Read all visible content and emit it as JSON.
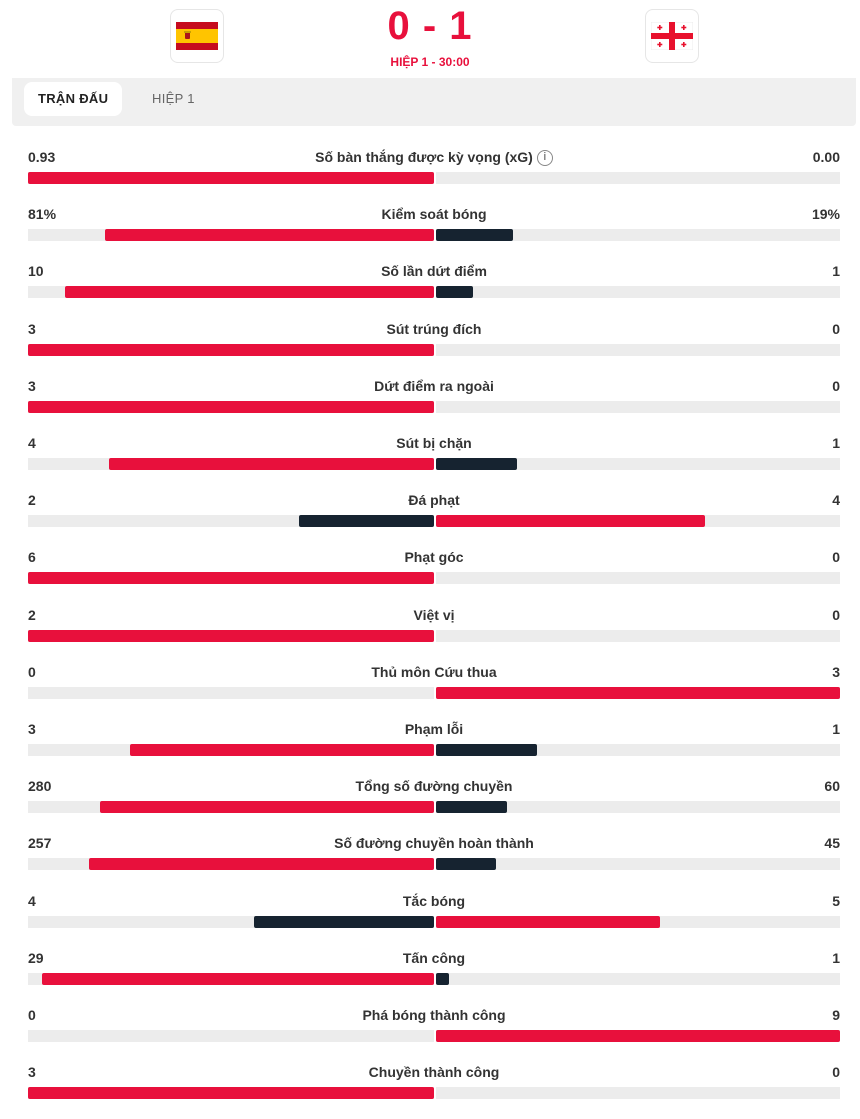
{
  "header": {
    "home_flag": "spain-flag",
    "away_flag": "georgia-flag",
    "score": "0 - 1",
    "status": "HIỆP 1 - 30:00"
  },
  "tabs": [
    {
      "label": "TRẬN ĐẤU",
      "active": true
    },
    {
      "label": "HIỆP 1",
      "active": false
    }
  ],
  "colors": {
    "accent": "#e8103c",
    "dark": "#162330",
    "track": "#ececec"
  },
  "stats": [
    {
      "label": "Số bàn thắng được kỳ vọng (xG)",
      "home": "0.93",
      "away": "0.00",
      "home_val": 0.93,
      "away_val": 0.0,
      "info": true
    },
    {
      "label": "Kiểm soát bóng",
      "home": "81%",
      "away": "19%",
      "home_val": 81,
      "away_val": 19
    },
    {
      "label": "Số lần dứt điểm",
      "home": "10",
      "away": "1",
      "home_val": 10,
      "away_val": 1
    },
    {
      "label": "Sút trúng đích",
      "home": "3",
      "away": "0",
      "home_val": 3,
      "away_val": 0
    },
    {
      "label": "Dứt điểm ra ngoài",
      "home": "3",
      "away": "0",
      "home_val": 3,
      "away_val": 0
    },
    {
      "label": "Sút bị chặn",
      "home": "4",
      "away": "1",
      "home_val": 4,
      "away_val": 1
    },
    {
      "label": "Đá phạt",
      "home": "2",
      "away": "4",
      "home_val": 2,
      "away_val": 4
    },
    {
      "label": "Phạt góc",
      "home": "6",
      "away": "0",
      "home_val": 6,
      "away_val": 0
    },
    {
      "label": "Việt vị",
      "home": "2",
      "away": "0",
      "home_val": 2,
      "away_val": 0
    },
    {
      "label": "Thủ môn Cứu thua",
      "home": "0",
      "away": "3",
      "home_val": 0,
      "away_val": 3
    },
    {
      "label": "Phạm lỗi",
      "home": "3",
      "away": "1",
      "home_val": 3,
      "away_val": 1
    },
    {
      "label": "Tổng số đường chuyền",
      "home": "280",
      "away": "60",
      "home_val": 280,
      "away_val": 60
    },
    {
      "label": "Số đường chuyền hoàn thành",
      "home": "257",
      "away": "45",
      "home_val": 257,
      "away_val": 45
    },
    {
      "label": "Tắc bóng",
      "home": "4",
      "away": "5",
      "home_val": 4,
      "away_val": 5
    },
    {
      "label": "Tấn công",
      "home": "29",
      "away": "1",
      "home_val": 29,
      "away_val": 1
    },
    {
      "label": "Phá bóng thành công",
      "home": "0",
      "away": "9",
      "home_val": 0,
      "away_val": 9
    },
    {
      "label": "Chuyền thành công",
      "home": "3",
      "away": "0",
      "home_val": 3,
      "away_val": 0
    }
  ]
}
